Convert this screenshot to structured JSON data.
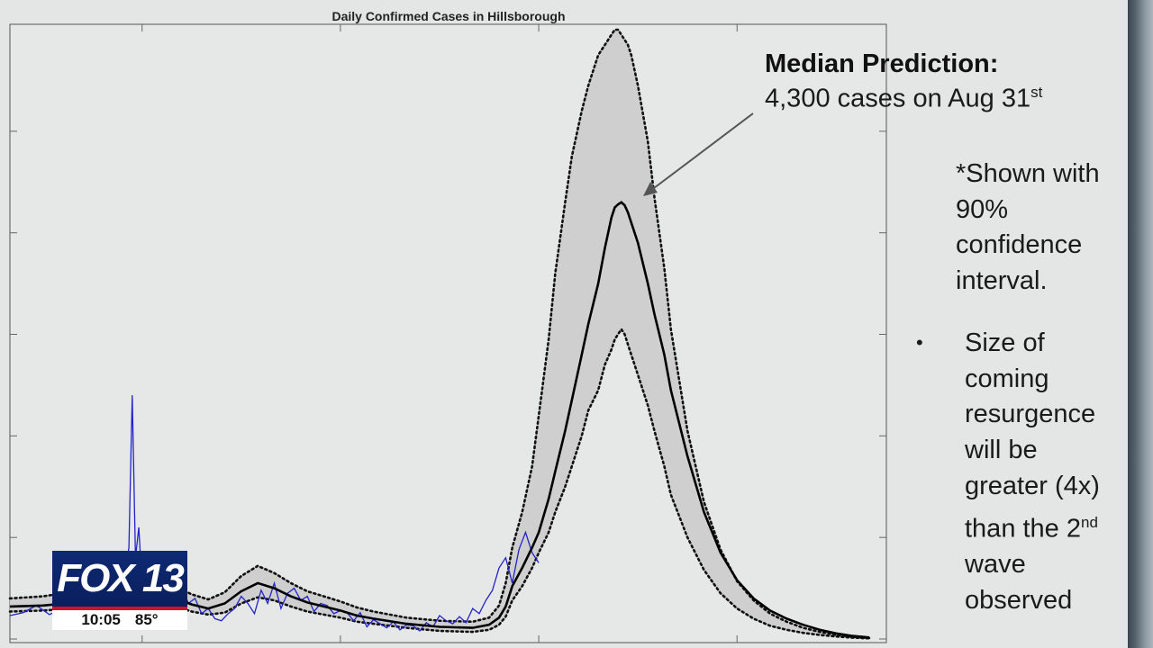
{
  "chart_data": {
    "type": "line",
    "title": "Daily Confirmed Cases in Hillsborough",
    "xlabel": "",
    "ylabel": "",
    "xlim": [
      0,
      260
    ],
    "ylim": [
      0,
      6000
    ],
    "grid": false,
    "series": [
      {
        "kind": "observed",
        "x": [
          0,
          4,
          8,
          12,
          16,
          18,
          20,
          24,
          28,
          30,
          32,
          34,
          36,
          37,
          38,
          39,
          40,
          42,
          44,
          46,
          48,
          50,
          52,
          54,
          56,
          58,
          60,
          62,
          64,
          66,
          68,
          70,
          72,
          74,
          76,
          78,
          80,
          82,
          84,
          86,
          88,
          90,
          92,
          94,
          96,
          98,
          100,
          102,
          104,
          106,
          108,
          110,
          112,
          114,
          116,
          118,
          120,
          122,
          124,
          126,
          128,
          130,
          132,
          134,
          136,
          138,
          140,
          142,
          144,
          146,
          148,
          150,
          152,
          154,
          156,
          158,
          160
        ],
        "values": [
          230,
          260,
          330,
          240,
          310,
          450,
          380,
          300,
          520,
          400,
          650,
          500,
          900,
          2400,
          800,
          1100,
          500,
          650,
          450,
          400,
          350,
          300,
          520,
          350,
          400,
          250,
          300,
          200,
          180,
          250,
          300,
          420,
          350,
          250,
          480,
          350,
          550,
          300,
          450,
          500,
          380,
          420,
          270,
          350,
          330,
          250,
          280,
          260,
          180,
          260,
          120,
          190,
          150,
          110,
          170,
          90,
          140,
          130,
          80,
          160,
          120,
          230,
          180,
          150,
          220,
          160,
          300,
          250,
          380,
          480,
          700,
          800,
          550,
          880,
          1050,
          850,
          750
        ]
      },
      {
        "kind": "median",
        "x": [
          0,
          10,
          20,
          30,
          40,
          50,
          55,
          60,
          65,
          70,
          75,
          80,
          85,
          90,
          95,
          100,
          105,
          110,
          120,
          130,
          140,
          145,
          148,
          150,
          152,
          155,
          158,
          160,
          163,
          165,
          168,
          170,
          173,
          175,
          178,
          180,
          182,
          183,
          184,
          185,
          186,
          187,
          188,
          190,
          193,
          195,
          198,
          200,
          205,
          210,
          215,
          220,
          225,
          230,
          235,
          240,
          245,
          250,
          255,
          260
        ],
        "values": [
          320,
          330,
          360,
          430,
          460,
          400,
          340,
          300,
          350,
          470,
          550,
          500,
          420,
          360,
          320,
          280,
          230,
          200,
          150,
          120,
          110,
          140,
          210,
          320,
          520,
          700,
          900,
          1050,
          1380,
          1650,
          2050,
          2350,
          2800,
          3100,
          3500,
          3850,
          4150,
          4250,
          4280,
          4300,
          4270,
          4200,
          4100,
          3900,
          3500,
          3200,
          2800,
          2450,
          1800,
          1250,
          850,
          580,
          400,
          280,
          200,
          140,
          90,
          55,
          30,
          15
        ]
      },
      {
        "kind": "upper_90",
        "x": [
          0,
          10,
          20,
          30,
          40,
          50,
          55,
          60,
          65,
          70,
          75,
          80,
          85,
          90,
          95,
          100,
          105,
          110,
          120,
          130,
          140,
          145,
          148,
          150,
          152,
          155,
          158,
          160,
          163,
          165,
          168,
          170,
          173,
          175,
          178,
          180,
          182,
          183,
          184,
          185,
          186,
          187,
          188,
          190,
          193,
          195,
          198,
          200,
          205,
          210,
          215,
          220,
          225,
          230,
          235,
          240,
          245,
          250,
          255,
          260
        ],
        "values": [
          400,
          420,
          470,
          560,
          600,
          520,
          440,
          390,
          460,
          620,
          720,
          650,
          550,
          470,
          420,
          370,
          310,
          270,
          210,
          180,
          170,
          210,
          330,
          550,
          900,
          1250,
          1700,
          2200,
          2950,
          3600,
          4300,
          4750,
          5200,
          5450,
          5750,
          5850,
          5950,
          6000,
          6000,
          5950,
          5900,
          5850,
          5750,
          5450,
          4900,
          4350,
          3650,
          3050,
          2050,
          1350,
          880,
          570,
          380,
          250,
          170,
          110,
          70,
          40,
          20,
          10
        ]
      },
      {
        "kind": "lower_90",
        "x": [
          0,
          10,
          20,
          30,
          40,
          50,
          55,
          60,
          65,
          70,
          75,
          80,
          85,
          90,
          95,
          100,
          105,
          110,
          120,
          130,
          140,
          145,
          148,
          150,
          152,
          155,
          158,
          160,
          163,
          165,
          168,
          170,
          173,
          175,
          178,
          180,
          182,
          183,
          184,
          185,
          186,
          187,
          188,
          190,
          193,
          195,
          198,
          200,
          205,
          210,
          215,
          220,
          225,
          230,
          235,
          240,
          245,
          250,
          255,
          260
        ],
        "values": [
          270,
          280,
          300,
          350,
          380,
          320,
          270,
          240,
          260,
          350,
          410,
          380,
          320,
          270,
          240,
          210,
          170,
          150,
          110,
          80,
          70,
          90,
          140,
          220,
          380,
          520,
          700,
          850,
          1050,
          1250,
          1500,
          1700,
          2000,
          2250,
          2450,
          2700,
          2850,
          2950,
          3000,
          3050,
          3000,
          2900,
          2800,
          2600,
          2300,
          2050,
          1700,
          1420,
          1000,
          680,
          450,
          300,
          200,
          130,
          90,
          60,
          40,
          25,
          12,
          6
        ]
      }
    ],
    "annotations": [
      {
        "text": "Median Prediction:",
        "target_x": 184,
        "target_y": 4300
      },
      {
        "text": "4,300 cases on Aug 31st"
      }
    ]
  },
  "annotation": {
    "title": "Median Prediction:",
    "line_main": "4,300 cases on Aug 31",
    "line_sup": "st"
  },
  "note": {
    "text": "*Shown with 90% confidence interval."
  },
  "bullet": {
    "symbol": "•",
    "text_before": "Size of coming resurgence will be greater (4x) than the 2",
    "text_sup": "nd",
    "text_after": " wave observed"
  },
  "logo": {
    "text": "FOX 13",
    "time": "10:05",
    "temp": "85°"
  },
  "colors": {
    "observed": "#2323c8",
    "median": "#000000",
    "band_fill": "#cfcfcf",
    "plot_bg": "#e6e7e7",
    "axis": "#555555"
  }
}
